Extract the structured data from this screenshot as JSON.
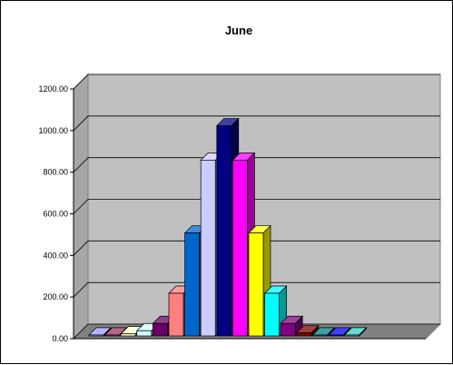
{
  "chart_data": {
    "type": "bar",
    "title": "June",
    "xlabel": "",
    "ylabel": "",
    "ylim": [
      0,
      1200
    ],
    "y_ticks": [
      "0.00",
      "200.00",
      "400.00",
      "600.00",
      "800.00",
      "1000.00",
      "1200.00"
    ],
    "grid": true,
    "legend": "none",
    "values": [
      5,
      5,
      10,
      25,
      60,
      205,
      495,
      845,
      1010,
      845,
      495,
      205,
      60,
      15,
      5,
      5,
      5
    ],
    "colors": [
      "#9999ff",
      "#993366",
      "#ffffcc",
      "#ccffff",
      "#660066",
      "#ff8080",
      "#0066cc",
      "#ccccff",
      "#000080",
      "#ff00ff",
      "#ffff00",
      "#00ffff",
      "#800080",
      "#800000",
      "#008080",
      "#0000ff",
      "#33cccc"
    ]
  }
}
